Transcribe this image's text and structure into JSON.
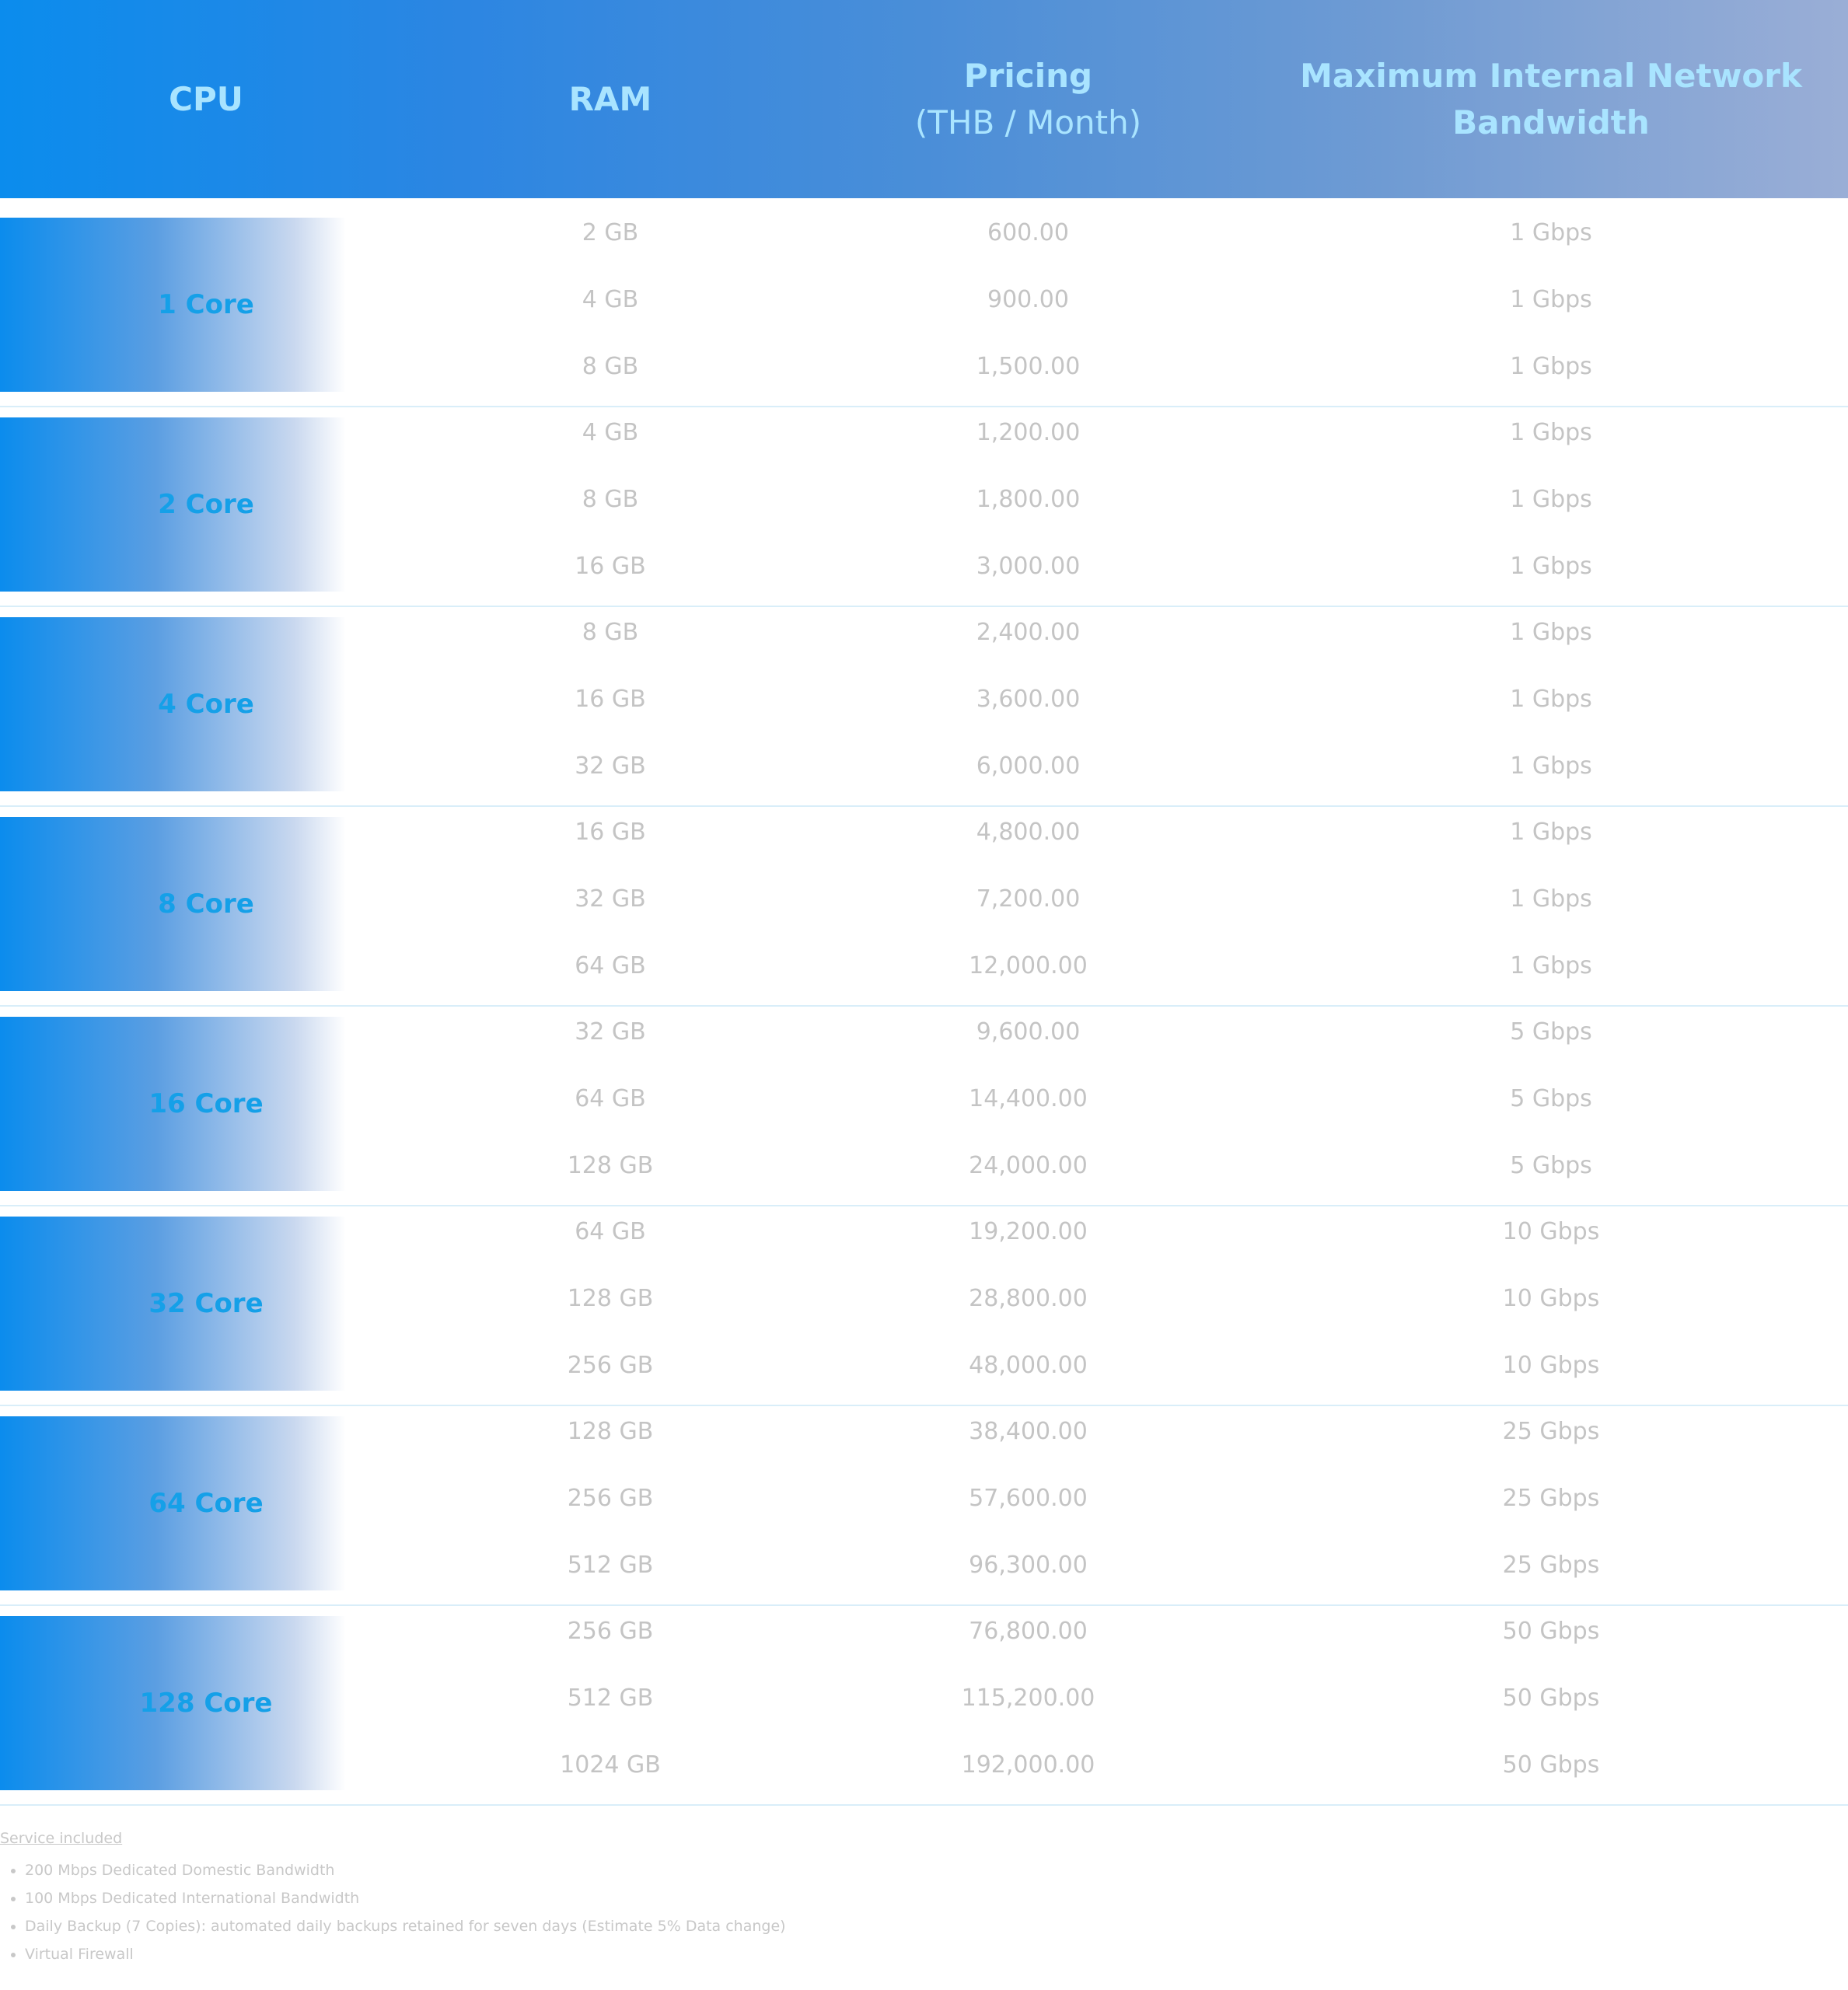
{
  "header": {
    "cpu": "CPU",
    "ram": "RAM",
    "pricing": "Pricing",
    "pricing_unit": "(THB / Month)",
    "bandwidth_line1": "Maximum Internal Network",
    "bandwidth_line2": "Bandwidth"
  },
  "groups": [
    {
      "cpu": "1 Core",
      "rows": [
        {
          "ram": "2 GB",
          "price": "600.00",
          "bw": "1 Gbps"
        },
        {
          "ram": "4 GB",
          "price": "900.00",
          "bw": "1 Gbps"
        },
        {
          "ram": "8 GB",
          "price": "1,500.00",
          "bw": "1 Gbps"
        }
      ]
    },
    {
      "cpu": "2 Core",
      "rows": [
        {
          "ram": "4 GB",
          "price": "1,200.00",
          "bw": "1 Gbps"
        },
        {
          "ram": "8 GB",
          "price": "1,800.00",
          "bw": "1 Gbps"
        },
        {
          "ram": "16 GB",
          "price": "3,000.00",
          "bw": "1 Gbps"
        }
      ]
    },
    {
      "cpu": "4 Core",
      "rows": [
        {
          "ram": "8 GB",
          "price": "2,400.00",
          "bw": "1 Gbps"
        },
        {
          "ram": "16 GB",
          "price": "3,600.00",
          "bw": "1 Gbps"
        },
        {
          "ram": "32 GB",
          "price": "6,000.00",
          "bw": "1 Gbps"
        }
      ]
    },
    {
      "cpu": "8 Core",
      "rows": [
        {
          "ram": "16 GB",
          "price": "4,800.00",
          "bw": "1 Gbps"
        },
        {
          "ram": "32 GB",
          "price": "7,200.00",
          "bw": "1 Gbps"
        },
        {
          "ram": "64 GB",
          "price": "12,000.00",
          "bw": "1 Gbps"
        }
      ]
    },
    {
      "cpu": "16 Core",
      "rows": [
        {
          "ram": "32 GB",
          "price": "9,600.00",
          "bw": "5 Gbps"
        },
        {
          "ram": "64 GB",
          "price": "14,400.00",
          "bw": "5 Gbps"
        },
        {
          "ram": "128 GB",
          "price": "24,000.00",
          "bw": "5 Gbps"
        }
      ]
    },
    {
      "cpu": "32 Core",
      "rows": [
        {
          "ram": "64 GB",
          "price": "19,200.00",
          "bw": "10 Gbps"
        },
        {
          "ram": "128 GB",
          "price": "28,800.00",
          "bw": "10 Gbps"
        },
        {
          "ram": "256 GB",
          "price": "48,000.00",
          "bw": "10 Gbps"
        }
      ]
    },
    {
      "cpu": "64 Core",
      "rows": [
        {
          "ram": "128 GB",
          "price": "38,400.00",
          "bw": "25 Gbps"
        },
        {
          "ram": "256 GB",
          "price": "57,600.00",
          "bw": "25 Gbps"
        },
        {
          "ram": "512 GB",
          "price": "96,300.00",
          "bw": "25 Gbps"
        }
      ]
    },
    {
      "cpu": "128 Core",
      "rows": [
        {
          "ram": "256 GB",
          "price": "76,800.00",
          "bw": "50 Gbps"
        },
        {
          "ram": "512 GB",
          "price": "115,200.00",
          "bw": "50 Gbps"
        },
        {
          "ram": "1024 GB",
          "price": "192,000.00",
          "bw": "50 Gbps"
        }
      ]
    }
  ],
  "notes": {
    "title": "Service included",
    "items": [
      "200 Mbps Dedicated Domestic Bandwidth",
      "100 Mbps Dedicated International Bandwidth",
      "Daily Backup (7 Copies): automated daily backups retained for seven days (Estimate 5% Data change)",
      "Virtual Firewall"
    ]
  }
}
